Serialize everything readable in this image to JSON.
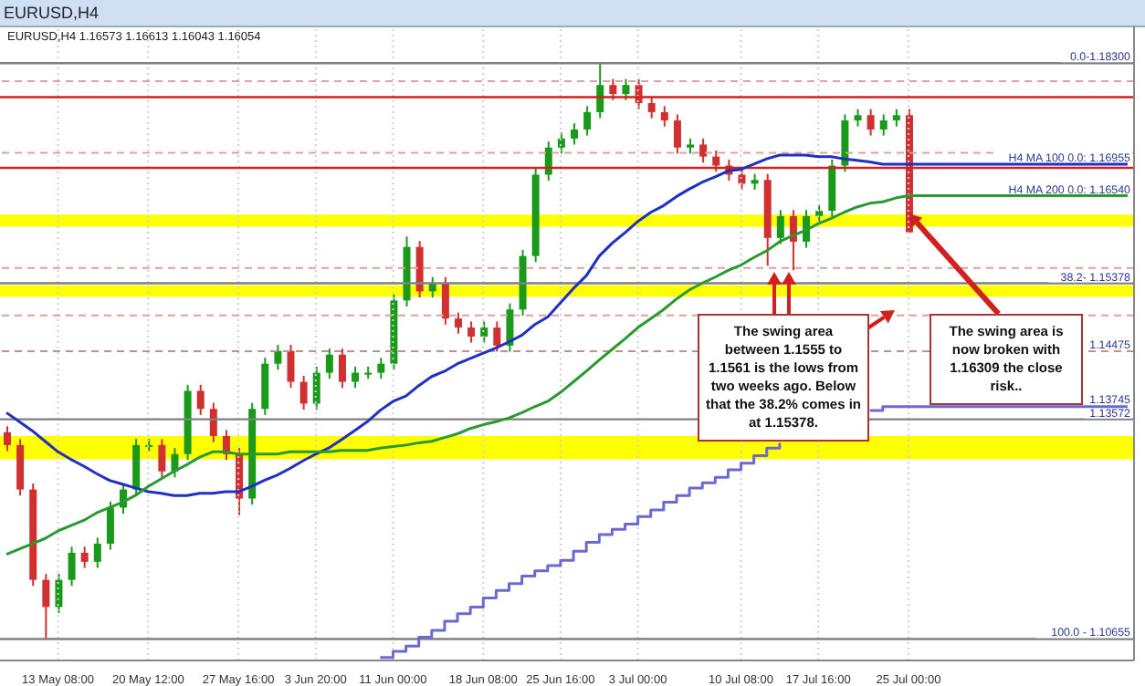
{
  "chart_data": {
    "type": "candlestick",
    "title": "EURUSD,H4",
    "subtitle": "EURUSD,H4 1.16573 1.16613 1.16043 1.16054",
    "categories": [
      null,
      null,
      null,
      null,
      "13 May 08:00",
      null,
      null,
      null,
      null,
      null,
      null,
      "20 May 12:00",
      null,
      null,
      null,
      null,
      null,
      null,
      "27 May 16:00",
      null,
      null,
      null,
      null,
      null,
      "3 Jun 20:00",
      null,
      null,
      null,
      null,
      null,
      "11 Jun 00:00",
      null,
      null,
      null,
      null,
      null,
      null,
      "18 Jun 08:00",
      null,
      null,
      null,
      null,
      null,
      "25 Jun 16:00",
      null,
      null,
      null,
      null,
      null,
      "3 Jul 00:00",
      null,
      null,
      null,
      null,
      null,
      null,
      null,
      "10 Jul 08:00",
      null,
      null,
      null,
      null,
      null,
      "17 Jul 16:00",
      null,
      null,
      null,
      null,
      null,
      null,
      "25 Jul 00:00",
      null,
      null,
      null,
      null,
      null,
      null,
      null,
      null,
      null,
      null,
      null,
      null,
      null,
      null,
      null,
      null,
      null
    ],
    "ohlc": [
      [
        1.134,
        1.1348,
        1.1315,
        1.1323
      ],
      [
        1.1323,
        1.1331,
        1.1256,
        1.1264
      ],
      [
        1.1264,
        1.1272,
        1.1136,
        1.1144
      ],
      [
        1.1144,
        1.1152,
        1.10655,
        1.1108
      ],
      [
        1.1108,
        1.1152,
        1.11,
        1.1144
      ],
      [
        1.1144,
        1.1188,
        1.1136,
        1.118
      ],
      [
        1.118,
        1.1188,
        1.116,
        1.1168
      ],
      [
        1.1168,
        1.12,
        1.116,
        1.1192
      ],
      [
        1.1192,
        1.1248,
        1.1184,
        1.124
      ],
      [
        1.124,
        1.1272,
        1.1232,
        1.1264
      ],
      [
        1.1264,
        1.1331,
        1.1256,
        1.1323
      ],
      [
        1.1323,
        1.1331,
        1.1315,
        1.1323
      ],
      [
        1.1323,
        1.1331,
        1.128,
        1.1288
      ],
      [
        1.1288,
        1.1319,
        1.128,
        1.1311
      ],
      [
        1.1311,
        1.1403,
        1.1303,
        1.1395
      ],
      [
        1.1395,
        1.1403,
        1.1363,
        1.1371
      ],
      [
        1.1371,
        1.1379,
        1.1327,
        1.1335
      ],
      [
        1.1335,
        1.1343,
        1.1303,
        1.1311
      ],
      [
        1.1311,
        1.1319,
        1.123,
        1.1252
      ],
      [
        1.1252,
        1.1379,
        1.1244,
        1.1371
      ],
      [
        1.1371,
        1.1439,
        1.1363,
        1.1431
      ],
      [
        1.1431,
        1.1456,
        1.1423,
        1.1448
      ],
      [
        1.1448,
        1.1456,
        1.1399,
        1.1407
      ],
      [
        1.1407,
        1.1415,
        1.137,
        1.1378
      ],
      [
        1.1378,
        1.1427,
        1.137,
        1.1419
      ],
      [
        1.1419,
        1.1451,
        1.1411,
        1.1443
      ],
      [
        1.1443,
        1.1451,
        1.1399,
        1.1407
      ],
      [
        1.1407,
        1.1427,
        1.1399,
        1.1419
      ],
      [
        1.1419,
        1.1427,
        1.1411,
        1.1419
      ],
      [
        1.1419,
        1.1439,
        1.1411,
        1.1431
      ],
      [
        1.1431,
        1.1523,
        1.1423,
        1.1515
      ],
      [
        1.1515,
        1.16,
        1.1507,
        1.1586
      ],
      [
        1.1586,
        1.1594,
        1.1519,
        1.1527
      ],
      [
        1.1527,
        1.1546,
        1.1519,
        1.1538
      ],
      [
        1.1538,
        1.1546,
        1.1483,
        1.1491
      ],
      [
        1.1491,
        1.1499,
        1.1471,
        1.1479
      ],
      [
        1.1479,
        1.1487,
        1.1459,
        1.1467
      ],
      [
        1.1467,
        1.1487,
        1.1459,
        1.1479
      ],
      [
        1.1479,
        1.1487,
        1.1447,
        1.1455
      ],
      [
        1.1455,
        1.1511,
        1.1447,
        1.1503
      ],
      [
        1.1503,
        1.1582,
        1.1495,
        1.1574
      ],
      [
        1.1574,
        1.169,
        1.1566,
        1.1682
      ],
      [
        1.1682,
        1.1726,
        1.1674,
        1.1718
      ],
      [
        1.1718,
        1.1738,
        1.171,
        1.173
      ],
      [
        1.173,
        1.175,
        1.1722,
        1.1742
      ],
      [
        1.1742,
        1.1773,
        1.1734,
        1.1765
      ],
      [
        1.1765,
        1.183,
        1.1757,
        1.1801
      ],
      [
        1.1801,
        1.1809,
        1.1781,
        1.1789
      ],
      [
        1.1789,
        1.1809,
        1.1781,
        1.1801
      ],
      [
        1.1801,
        1.1809,
        1.1769,
        1.1777
      ],
      [
        1.1777,
        1.1785,
        1.1757,
        1.1765
      ],
      [
        1.1765,
        1.1773,
        1.1746,
        1.1754
      ],
      [
        1.1754,
        1.1762,
        1.171,
        1.1718
      ],
      [
        1.1718,
        1.173,
        1.171,
        1.1722
      ],
      [
        1.1722,
        1.173,
        1.1698,
        1.1706
      ],
      [
        1.1706,
        1.1714,
        1.1686,
        1.1694
      ],
      [
        1.1694,
        1.1702,
        1.1674,
        1.1682
      ],
      [
        1.1682,
        1.169,
        1.1662,
        1.167
      ],
      [
        1.167,
        1.1683,
        1.1662,
        1.1675
      ],
      [
        1.1675,
        1.1683,
        1.1561,
        1.1598
      ],
      [
        1.1598,
        1.1635,
        1.159,
        1.1627
      ],
      [
        1.1627,
        1.1635,
        1.1555,
        1.1593
      ],
      [
        1.1593,
        1.1635,
        1.1585,
        1.1627
      ],
      [
        1.1627,
        1.1642,
        1.1619,
        1.1634
      ],
      [
        1.1634,
        1.1702,
        1.1626,
        1.1694
      ],
      [
        1.1694,
        1.1762,
        1.1686,
        1.1754
      ],
      [
        1.1754,
        1.1769,
        1.1746,
        1.1761
      ],
      [
        1.1761,
        1.1769,
        1.1734,
        1.1742
      ],
      [
        1.1742,
        1.1762,
        1.1734,
        1.1754
      ],
      [
        1.1754,
        1.1769,
        1.1746,
        1.1761
      ],
      [
        1.1761,
        1.1769,
        1.16043,
        1.16054
      ],
      null,
      null,
      null,
      null,
      null,
      null,
      null,
      null,
      null,
      null,
      null,
      null,
      null,
      null,
      null,
      null,
      null
    ],
    "colors": [
      "#d03030",
      "#d03030",
      "#d03030",
      "#d03030",
      "#1a9a1a",
      "#1a9a1a",
      "#d03030",
      "#1a9a1a",
      "#1a9a1a",
      "#1a9a1a",
      "#1a9a1a",
      "#1a9a1a",
      "#d03030",
      "#1a9a1a",
      "#1a9a1a",
      "#d03030",
      "#d03030",
      "#d03030",
      "#d03030",
      "#1a9a1a",
      "#1a9a1a",
      "#1a9a1a",
      "#d03030",
      "#d03030",
      "#1a9a1a",
      "#1a9a1a",
      "#d03030",
      "#1a9a1a",
      "#1a9a1a",
      "#1a9a1a",
      "#1a9a1a",
      "#1a9a1a",
      "#d03030",
      "#1a9a1a",
      "#d03030",
      "#d03030",
      "#d03030",
      "#1a9a1a",
      "#d03030",
      "#1a9a1a",
      "#1a9a1a",
      "#1a9a1a",
      "#1a9a1a",
      "#1a9a1a",
      "#1a9a1a",
      "#1a9a1a",
      "#1a9a1a",
      "#d03030",
      "#1a9a1a",
      "#d03030",
      "#d03030",
      "#d03030",
      "#d03030",
      "#1a9a1a",
      "#d03030",
      "#d03030",
      "#d03030",
      "#d03030",
      "#1a9a1a",
      "#d03030",
      "#1a9a1a",
      "#d03030",
      "#1a9a1a",
      "#1a9a1a",
      "#1a9a1a",
      "#1a9a1a",
      "#1a9a1a",
      "#d03030",
      "#1a9a1a",
      "#1a9a1a",
      "#d03030",
      null,
      null,
      null,
      null,
      null,
      null,
      null,
      null,
      null,
      null,
      null,
      null,
      null,
      null,
      null,
      null,
      null
    ],
    "series": [
      {
        "type": "line",
        "color": "#2030c0",
        "values": [
          1.1366,
          1.1354,
          1.1342,
          1.1328,
          1.1314,
          1.1304,
          1.1295,
          1.1285,
          1.1276,
          1.1271,
          1.1266,
          1.1261,
          1.1259,
          1.1256,
          1.1256,
          1.1259,
          1.1259,
          1.1261,
          1.1261,
          1.1268,
          1.1276,
          1.1283,
          1.1292,
          1.1302,
          1.1311,
          1.1319,
          1.133,
          1.1342,
          1.1354,
          1.1369,
          1.1381,
          1.1388,
          1.1402,
          1.1414,
          1.1421,
          1.1431,
          1.1438,
          1.1445,
          1.1452,
          1.146,
          1.1469,
          1.1483,
          1.1493,
          1.1512,
          1.1531,
          1.1548,
          1.1574,
          1.1591,
          1.1605,
          1.162,
          1.1632,
          1.1641,
          1.1653,
          1.1663,
          1.1672,
          1.1679,
          1.1687,
          1.1689,
          1.1696,
          1.1703,
          1.1708,
          1.1708,
          1.1708,
          1.1706,
          1.1706,
          1.1703,
          1.1701,
          1.1699,
          1.1696,
          1.1696,
          1.1696,
          1.1696,
          1.1696,
          1.1696,
          1.1696,
          1.1696,
          1.1696,
          1.1696,
          1.1696,
          1.1696,
          1.1696,
          1.1696,
          1.1696,
          1.1696,
          1.1696,
          1.1696,
          1.1696,
          1.1696
        ]
      },
      {
        "type": "line",
        "color": "#2a9a30",
        "values": [
          1.1178,
          1.1185,
          1.1192,
          1.1199,
          1.1209,
          1.1216,
          1.1223,
          1.1233,
          1.124,
          1.1247,
          1.1256,
          1.1268,
          1.1278,
          1.1288,
          1.1297,
          1.1307,
          1.1314,
          1.1314,
          1.1311,
          1.1311,
          1.1311,
          1.1311,
          1.1314,
          1.1314,
          1.1314,
          1.1314,
          1.1316,
          1.1316,
          1.1316,
          1.1319,
          1.1321,
          1.1323,
          1.1326,
          1.1328,
          1.1333,
          1.1338,
          1.1345,
          1.135,
          1.1354,
          1.1359,
          1.1366,
          1.1374,
          1.1381,
          1.1393,
          1.1407,
          1.1421,
          1.1436,
          1.145,
          1.1464,
          1.1479,
          1.1491,
          1.1503,
          1.1517,
          1.1529,
          1.1538,
          1.1546,
          1.1555,
          1.1562,
          1.1572,
          1.1581,
          1.1593,
          1.1601,
          1.1608,
          1.1617,
          1.1624,
          1.1632,
          1.1639,
          1.1644,
          1.1646,
          1.1651,
          1.1654,
          1.1654,
          1.1654,
          1.1654,
          1.1654,
          1.1654,
          1.1654,
          1.1654,
          1.1654,
          1.1654,
          1.1654,
          1.1654,
          1.1654,
          1.1654,
          1.1654,
          1.1654,
          1.1654,
          1.1654
        ]
      },
      {
        "type": "step",
        "color": "#6a6ad0",
        "values": [
          null,
          null,
          null,
          null,
          null,
          null,
          null,
          null,
          null,
          null,
          null,
          null,
          null,
          null,
          null,
          null,
          null,
          null,
          null,
          null,
          null,
          null,
          null,
          null,
          null,
          null,
          null,
          null,
          null,
          1.1041,
          1.1049,
          1.1056,
          1.1068,
          1.1077,
          1.1089,
          1.1099,
          1.1108,
          1.112,
          1.113,
          1.1139,
          1.1149,
          1.1156,
          1.1163,
          1.117,
          1.1182,
          1.1194,
          1.1204,
          1.1211,
          1.1218,
          1.1228,
          1.1237,
          1.1247,
          1.1256,
          1.1266,
          1.1273,
          1.128,
          1.129,
          1.1299,
          1.1309,
          1.1319,
          1.1326,
          null,
          null,
          null,
          null,
          null,
          null,
          1.1369,
          1.1374,
          1.1374,
          1.1374,
          1.1374,
          1.1374,
          1.1374,
          1.1374,
          1.1374,
          1.1374,
          1.1374,
          1.1374,
          1.1374,
          1.1374,
          1.1374,
          1.1374,
          1.1374,
          1.1374,
          1.1374,
          1.1374,
          1.1374
        ]
      }
    ],
    "ylim": [
      1.1037,
      1.188
    ],
    "tick_labels": "x",
    "grid": "x",
    "ref_lines": [
      {
        "axis": "y",
        "value": 1.183,
        "color": "#808080"
      },
      {
        "axis": "y",
        "value": 1.1806,
        "color": "#e0a0a0",
        "line_style": "dashed"
      },
      {
        "axis": "y",
        "value": 1.1785,
        "color": "#d02020"
      },
      {
        "axis": "y",
        "value": 1.1711,
        "color": "#e0a0a0",
        "line_style": "dashed"
      },
      {
        "axis": "y",
        "value": 1.1691,
        "color": "#d02020"
      },
      {
        "axis": "y",
        "value": 1.1558,
        "color": "#e0a0a0",
        "line_style": "dashed"
      },
      {
        "axis": "y",
        "value": 1.15378,
        "color": "#808080"
      },
      {
        "axis": "y",
        "value": 1.1495,
        "color": "#e0a0a0",
        "line_style": "dashed"
      },
      {
        "axis": "y",
        "value": 1.14475,
        "label": "1.14475",
        "color": "#c09090",
        "line_style": "dashed"
      },
      {
        "axis": "y",
        "value": 1.13572,
        "label": "1.13572",
        "color": "#808080"
      },
      {
        "axis": "y",
        "value": 1.10655,
        "color": "#808080"
      }
    ],
    "bands": [
      {
        "axis": "y",
        "from": 1.1613,
        "to": 1.1629,
        "color": "#ffff00"
      },
      {
        "axis": "y",
        "from": 1.152,
        "to": 1.1535,
        "color": "#ffff00"
      },
      {
        "axis": "y",
        "from": 1.1304,
        "to": 1.1335,
        "color": "#ffff00"
      }
    ],
    "annotations": [
      "The swing area between 1.1555 to 1.1561 is the lows from two weeks ago. Below that the 38.2% comes in at 1.15378.",
      {
        "text": "The swing area is now broken with 1.16309 the close risk..",
        "x": "25 Jul 00:00",
        "y": 1.16309
      },
      {
        "text": "0.0-1.18300",
        "y": 1.183
      },
      {
        "text": "H4 MA 100 0.0: 1.16955",
        "y": 1.16955
      },
      {
        "text": "H4 MA 200 0.0: 1.16540",
        "y": 1.1654
      },
      {
        "text": "38.2- 1.15378",
        "y": 1.15378
      },
      {
        "text": "1.13745",
        "y": 1.13745
      },
      {
        "text": "100.0 - 1.10655",
        "y": 1.10655
      }
    ]
  }
}
